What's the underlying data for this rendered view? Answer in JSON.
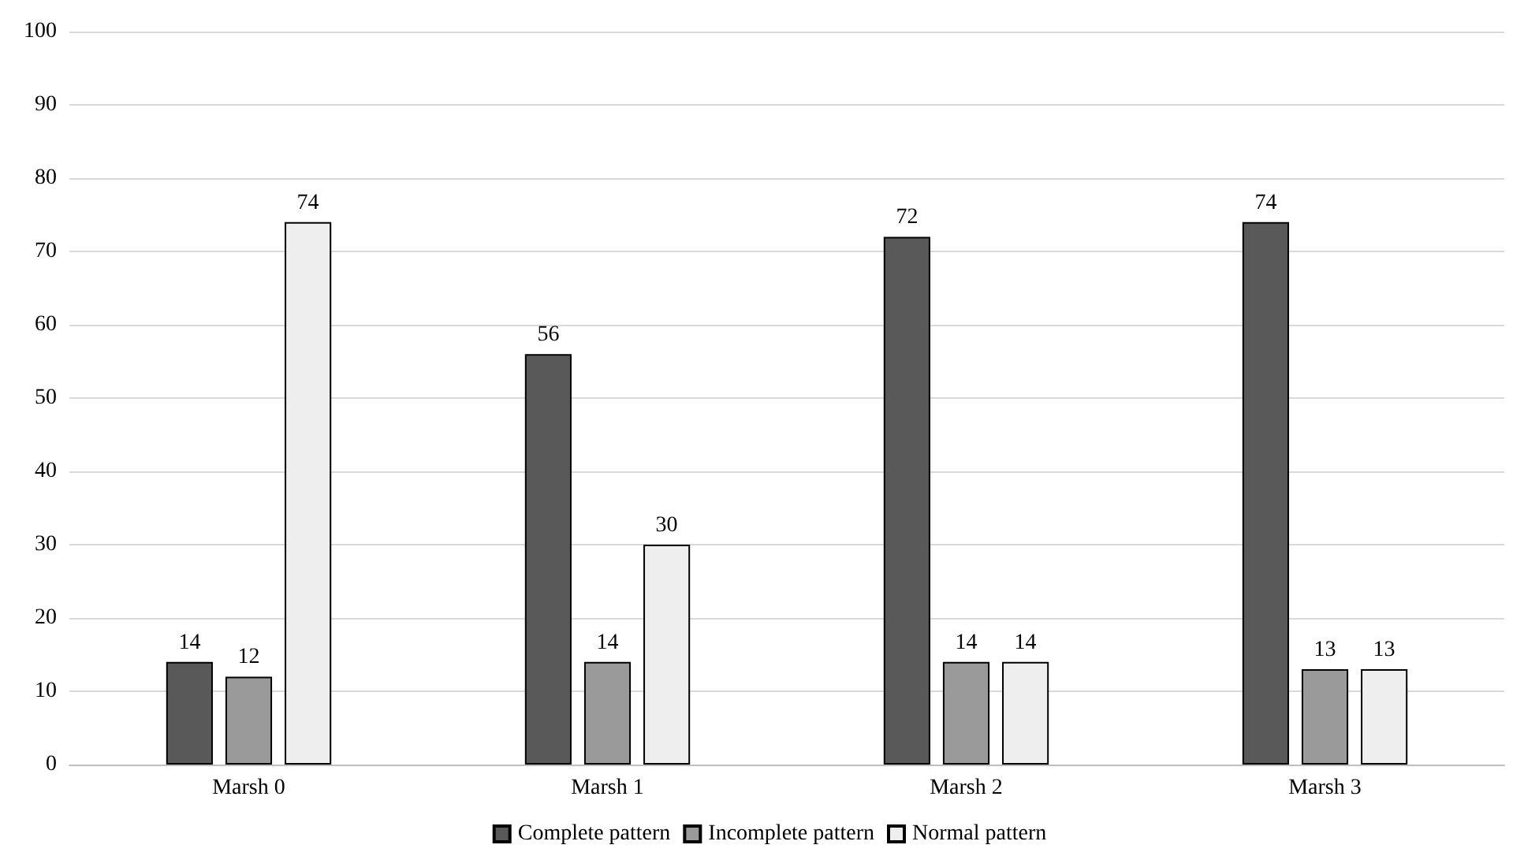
{
  "chart_data": {
    "type": "bar",
    "categories": [
      "Marsh 0",
      "Marsh 1",
      "Marsh 2",
      "Marsh 3"
    ],
    "series": [
      {
        "name": "Complete pattern",
        "color": "#595959",
        "values": [
          14,
          56,
          72,
          74
        ]
      },
      {
        "name": "Incomplete pattern",
        "color": "#9a9a9a",
        "values": [
          12,
          14,
          14,
          13
        ]
      },
      {
        "name": "Normal pattern",
        "color": "#eeeeee",
        "values": [
          74,
          30,
          14,
          13
        ]
      }
    ],
    "ylim": [
      0,
      100
    ],
    "yticks": [
      0,
      10,
      20,
      30,
      40,
      50,
      60,
      70,
      80,
      90,
      100
    ],
    "grid": "y",
    "legend": "bottom",
    "data_labels": true
  }
}
